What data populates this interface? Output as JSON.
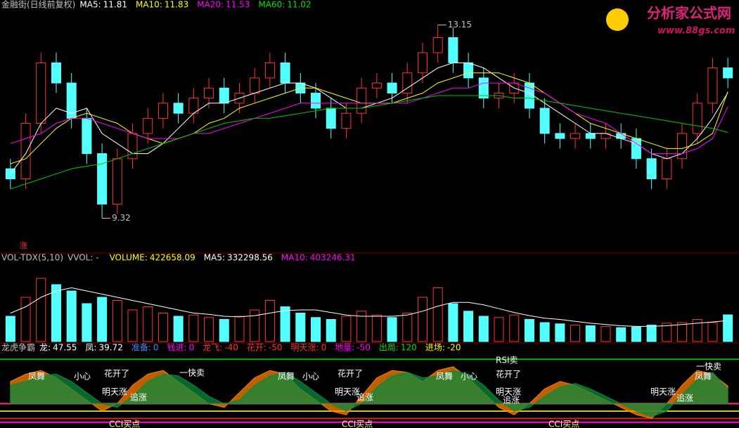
{
  "chart_data": [
    {
      "type": "candlestick",
      "title": "金融街(日线前复权)",
      "fields": [
        {
          "name": "MA5:",
          "value": 11.81,
          "color": "#ffffff"
        },
        {
          "name": "MA10:",
          "value": 11.83,
          "color": "#ffff00"
        },
        {
          "name": "MA20:",
          "value": 11.53,
          "color": "#ff00ff"
        },
        {
          "name": "MA60:",
          "value": 11.02,
          "color": "#00e600"
        }
      ],
      "ylim": [
        8.7,
        13.45
      ],
      "up_color": "#ff3232",
      "down_color": "#54ffff",
      "marker": "涨",
      "open": [
        10.3,
        10.1,
        11.2,
        12.4,
        12.0,
        11.3,
        10.6,
        9.6,
        10.5,
        11.0,
        11.3,
        11.6,
        11.4,
        11.7,
        11.9,
        11.6,
        11.8,
        12.1,
        12.4,
        12.0,
        11.8,
        11.5,
        11.1,
        11.4,
        11.9,
        12.0,
        11.8,
        12.2,
        12.6,
        12.9,
        12.4,
        12.1,
        11.7,
        11.8,
        12.0,
        11.5,
        11.0,
        10.9,
        11.0,
        10.9,
        11.0,
        10.9,
        10.5,
        10.1,
        10.5,
        11.0,
        11.6,
        12.3
      ],
      "high": [
        10.5,
        11.4,
        12.6,
        12.6,
        12.2,
        11.5,
        10.8,
        10.7,
        11.2,
        11.5,
        11.8,
        11.8,
        11.9,
        12.1,
        12.1,
        12.0,
        12.3,
        12.6,
        12.6,
        12.2,
        12.0,
        11.7,
        11.6,
        12.1,
        12.2,
        12.2,
        12.4,
        12.8,
        13.15,
        13.1,
        12.6,
        12.3,
        12.0,
        12.2,
        12.2,
        11.7,
        11.2,
        11.2,
        11.2,
        11.2,
        11.2,
        11.1,
        10.7,
        10.7,
        11.2,
        11.8,
        12.5,
        12.5
      ],
      "low": [
        9.9,
        9.9,
        11.0,
        11.8,
        11.1,
        10.4,
        9.32,
        9.4,
        10.3,
        10.8,
        11.1,
        11.2,
        11.2,
        11.5,
        11.4,
        11.4,
        11.6,
        11.9,
        11.8,
        11.6,
        11.3,
        10.9,
        10.9,
        11.2,
        11.7,
        11.6,
        11.6,
        12.0,
        12.4,
        12.2,
        11.9,
        11.5,
        11.5,
        11.6,
        11.3,
        10.8,
        10.7,
        10.7,
        10.7,
        10.7,
        10.7,
        10.3,
        9.9,
        9.9,
        10.3,
        10.8,
        11.4,
        11.9
      ],
      "close": [
        10.1,
        11.2,
        12.4,
        12.0,
        11.3,
        10.6,
        9.6,
        10.5,
        11.0,
        11.3,
        11.6,
        11.4,
        11.7,
        11.9,
        11.6,
        11.8,
        12.1,
        12.4,
        12.0,
        11.8,
        11.5,
        11.1,
        11.4,
        11.9,
        12.0,
        11.8,
        12.2,
        12.6,
        12.9,
        12.4,
        12.1,
        11.7,
        11.8,
        12.0,
        11.5,
        11.0,
        10.9,
        11.0,
        10.9,
        11.0,
        10.9,
        10.5,
        10.1,
        10.5,
        11.0,
        11.6,
        12.3,
        12.1
      ],
      "series": [
        {
          "name": "MA5",
          "color": "#ffffff",
          "values": [
            10.2,
            10.6,
            11.2,
            11.5,
            11.4,
            11.5,
            11.0,
            10.8,
            10.6,
            10.6,
            10.8,
            11.1,
            11.4,
            11.6,
            11.6,
            11.7,
            11.8,
            11.9,
            12.0,
            12.0,
            11.9,
            11.7,
            11.5,
            11.5,
            11.6,
            11.7,
            11.9,
            12.1,
            12.3,
            12.4,
            12.4,
            12.3,
            12.1,
            11.9,
            11.8,
            11.6,
            11.4,
            11.2,
            11.0,
            11.0,
            10.9,
            10.8,
            10.6,
            10.5,
            10.6,
            10.9,
            11.3,
            11.81
          ]
        },
        {
          "name": "MA10",
          "color": "#ffff00",
          "values": [
            10.4,
            10.5,
            10.8,
            11.1,
            11.3,
            11.4,
            11.3,
            11.2,
            11.0,
            10.9,
            10.8,
            10.9,
            11.0,
            11.2,
            11.3,
            11.5,
            11.6,
            11.7,
            11.8,
            11.9,
            11.9,
            11.8,
            11.7,
            11.6,
            11.6,
            11.6,
            11.7,
            11.8,
            12.0,
            12.1,
            12.2,
            12.2,
            12.2,
            12.1,
            12.0,
            11.8,
            11.6,
            11.4,
            11.2,
            11.1,
            11.0,
            10.9,
            10.8,
            10.7,
            10.7,
            10.8,
            11.0,
            11.83
          ]
        },
        {
          "name": "MA20",
          "color": "#ff00ff",
          "values": [
            10.8,
            10.9,
            11.0,
            11.2,
            11.3,
            11.3,
            11.2,
            11.1,
            11.0,
            10.9,
            10.9,
            10.9,
            11.0,
            11.0,
            11.1,
            11.2,
            11.3,
            11.4,
            11.5,
            11.6,
            11.6,
            11.6,
            11.6,
            11.6,
            11.6,
            11.6,
            11.6,
            11.7,
            11.8,
            11.9,
            11.9,
            12.0,
            12.0,
            12.0,
            11.9,
            11.8,
            11.6,
            11.4,
            11.3,
            11.2,
            11.0,
            10.8,
            10.6,
            10.6,
            10.6,
            10.7,
            10.9,
            11.53
          ]
        },
        {
          "name": "MA60",
          "color": "#00c800",
          "values": [
            9.9,
            10.0,
            10.1,
            10.2,
            10.3,
            10.35,
            10.4,
            10.5,
            10.6,
            10.7,
            10.8,
            10.9,
            11.0,
            11.1,
            11.2,
            11.25,
            11.3,
            11.3,
            11.35,
            11.4,
            11.45,
            11.5,
            11.5,
            11.5,
            11.55,
            11.6,
            11.65,
            11.7,
            11.75,
            11.75,
            11.75,
            11.75,
            11.75,
            11.7,
            11.7,
            11.65,
            11.6,
            11.55,
            11.5,
            11.45,
            11.4,
            11.35,
            11.3,
            11.25,
            11.2,
            11.15,
            11.1,
            11.02
          ]
        }
      ]
    },
    {
      "type": "bar",
      "title": "VOL-TDX(5,10)",
      "fields": [
        {
          "name": "VVOL: -",
          "color": "#c0c0c0"
        },
        {
          "name": "VOLUME:",
          "value": 422658.09,
          "color": "#ffff00"
        },
        {
          "name": "MA5:",
          "value": 332298.56,
          "color": "#ffffff"
        },
        {
          "name": "MA10:",
          "value": 403246.31,
          "color": "#ff00ff"
        }
      ],
      "ylim": [
        0,
        1200000
      ],
      "values": [
        400000,
        700000,
        1000000,
        900000,
        800000,
        600000,
        700000,
        650000,
        500000,
        550000,
        450000,
        400000,
        420000,
        380000,
        350000,
        400000,
        500000,
        650000,
        550000,
        450000,
        380000,
        350000,
        400000,
        480000,
        420000,
        380000,
        450000,
        700000,
        850000,
        600000,
        480000,
        400000,
        380000,
        420000,
        350000,
        300000,
        280000,
        260000,
        250000,
        240000,
        220000,
        230000,
        260000,
        290000,
        300000,
        350000,
        300000,
        422658.09
      ],
      "series": [
        {
          "name": "MA5",
          "color": "#ffffff",
          "values": [
            450000,
            550000,
            700000,
            800000,
            850000,
            800000,
            750000,
            700000,
            650000,
            600000,
            550000,
            500000,
            450000,
            430000,
            400000,
            390000,
            410000,
            450000,
            490000,
            500000,
            500000,
            460000,
            420000,
            400000,
            400000,
            400000,
            420000,
            480000,
            560000,
            620000,
            620000,
            580000,
            520000,
            460000,
            410000,
            370000,
            350000,
            320000,
            290000,
            270000,
            250000,
            240000,
            240000,
            250000,
            270000,
            290000,
            310000,
            332298.56
          ]
        }
      ]
    },
    {
      "type": "area",
      "title": "龙虎争霸",
      "fields": [
        {
          "name": "龙:",
          "value": 47.55,
          "color": "#ffffff"
        },
        {
          "name": "凤:",
          "value": 39.72,
          "color": "#ffffff"
        },
        {
          "name": "准备:",
          "value": 0,
          "color": "#3c8cff"
        },
        {
          "name": "钱进:",
          "value": 0,
          "color": "#ff00ff"
        },
        {
          "name": "龙飞:",
          "value": -40,
          "color": "#ff3232"
        },
        {
          "name": "花开:",
          "value": -50,
          "color": "#ff3232"
        },
        {
          "name": "明天涨:",
          "value": 0,
          "color": "#ff3232"
        },
        {
          "name": "地量:",
          "value": -50,
          "color": "#ff00ff"
        },
        {
          "name": "出局:",
          "value": 120,
          "color": "#00e600"
        },
        {
          "name": "进场:",
          "value": -20,
          "color": "#ffff00"
        }
      ],
      "ylim": [
        -60,
        130
      ],
      "series": [
        {
          "name": "龙",
          "color": "#ff7f00",
          "values": [
            60,
            80,
            90,
            70,
            40,
            10,
            -20,
            0,
            50,
            80,
            90,
            60,
            30,
            0,
            -10,
            30,
            70,
            90,
            80,
            40,
            10,
            -20,
            -30,
            20,
            70,
            90,
            85,
            60,
            90,
            100,
            70,
            30,
            -10,
            -30,
            0,
            40,
            60,
            50,
            30,
            10,
            -10,
            -30,
            -40,
            0,
            50,
            90,
            80,
            47.55
          ]
        },
        {
          "name": "凤",
          "color": "#0a8a3c",
          "values": [
            50,
            60,
            75,
            80,
            60,
            30,
            0,
            -10,
            20,
            60,
            80,
            75,
            50,
            20,
            0,
            10,
            50,
            75,
            85,
            60,
            30,
            0,
            -20,
            0,
            45,
            75,
            85,
            70,
            75,
            90,
            80,
            50,
            10,
            -20,
            -10,
            20,
            45,
            55,
            40,
            20,
            0,
            -20,
            -35,
            -20,
            25,
            65,
            85,
            39.72
          ]
        }
      ],
      "annotations": [
        "凤舞",
        "小心",
        "花开了",
        "明天涨",
        "追涨",
        "一快卖",
        "凤舞",
        "小心",
        "花开了",
        "明天涨",
        "追涨",
        "凤舞",
        "小心",
        "RSI卖",
        "花开了",
        "明天涨",
        "追涨",
        "明天涨",
        "追涨",
        "一快卖",
        "凤舞",
        "CCI买点",
        "CCI买点",
        "CCI买点"
      ]
    }
  ],
  "watermark": {
    "title": "分析家公式网",
    "url": "www.88gs.com"
  }
}
